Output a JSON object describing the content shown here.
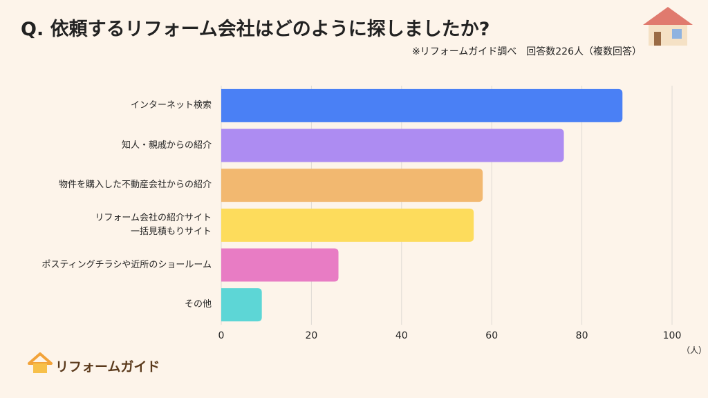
{
  "chart_data": {
    "type": "hbar",
    "title": "Q.  依頼するリフォーム会社はどのように探しましたか?",
    "subtitle": "※リフォームガイド調べ　回答数226人（複数回答）",
    "x_unit": "（人）",
    "categories": [
      "インターネット検索",
      "知人・親戚からの紹介",
      "物件を購入した不動産会社からの紹介",
      "リフォーム会社の紹介サイト\n一括見積もりサイト",
      "ポスティングチラシや近所のショールーム",
      "その他"
    ],
    "values": [
      89,
      76,
      58,
      56,
      26,
      9
    ],
    "colors": [
      "#4a80f5",
      "#ad8cf2",
      "#f2b870",
      "#fddc5c",
      "#e87cc4",
      "#5dd6d6"
    ],
    "xlim": [
      0,
      100
    ],
    "xticks": [
      0,
      20,
      40,
      60,
      80,
      100
    ],
    "grid": true
  },
  "logo": {
    "text": "リフォームガイド"
  }
}
